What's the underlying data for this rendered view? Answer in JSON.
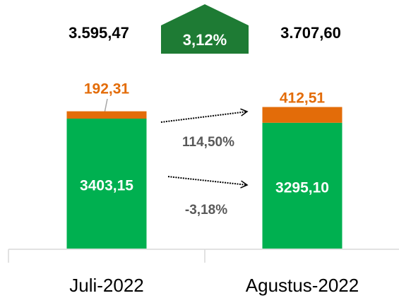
{
  "chart_data": {
    "type": "bar",
    "stacked": true,
    "categories": [
      "Juli-2022",
      "Agustus-2022"
    ],
    "series": [
      {
        "color": "#00b050",
        "values": [
          3403.15,
          3295.1
        ],
        "value_labels": [
          "3403,15",
          "3295,10"
        ]
      },
      {
        "color": "#e36c09",
        "values": [
          192.31,
          412.51
        ],
        "value_labels": [
          "192,31",
          "412,51"
        ]
      }
    ],
    "total_labels": [
      "3.595,47",
      "3.707,60"
    ],
    "total_change": "3,12%",
    "series_changes": [
      "-3,18%",
      "114,50%"
    ]
  }
}
